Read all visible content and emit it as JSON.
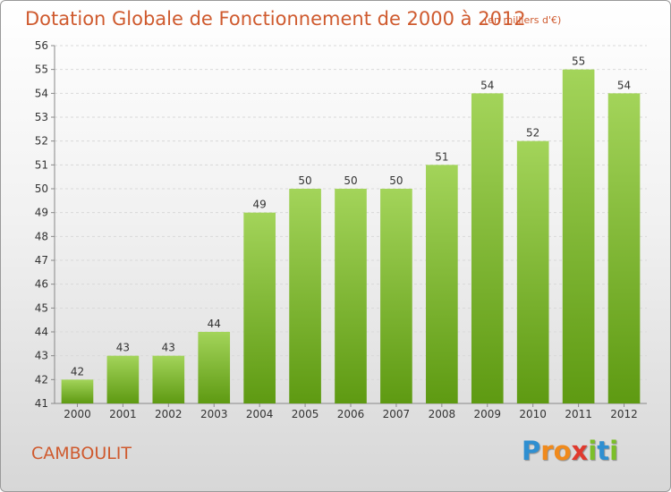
{
  "header": {
    "title": "Dotation Globale de Fonctionnement de 2000 à 2012",
    "subtitle": "(en milliers d'€)"
  },
  "footer": {
    "commune": "CAMBOULIT",
    "logo_letters": [
      "P",
      "r",
      "o",
      "x",
      "i",
      "t",
      "i"
    ],
    "logo_colors": [
      "#2f8fd1",
      "#f08a1c",
      "#f08a1c",
      "#e03a2e",
      "#7cbf2a",
      "#2f8fd1",
      "#7cbf2a"
    ]
  },
  "colors": {
    "bar_top": "#a3d45a",
    "bar_bottom": "#5e9a12",
    "text": "#cf5a2e",
    "axis_text": "#333333",
    "grid": "#d9d9d9"
  },
  "chart_data": {
    "type": "bar",
    "title": "Dotation Globale de Fonctionnement de 2000 à 2012",
    "subtitle": "(en milliers d'€)",
    "categories": [
      "2000",
      "2001",
      "2002",
      "2003",
      "2004",
      "2005",
      "2006",
      "2007",
      "2008",
      "2009",
      "2010",
      "2011",
      "2012"
    ],
    "values": [
      42,
      43,
      43,
      44,
      49,
      50,
      50,
      50,
      51,
      54,
      52,
      55,
      54
    ],
    "ylim": [
      41,
      56
    ],
    "yticks": [
      41,
      42,
      43,
      44,
      45,
      46,
      47,
      48,
      49,
      50,
      51,
      52,
      53,
      54,
      55,
      56
    ],
    "grid": true,
    "data_labels": true
  }
}
